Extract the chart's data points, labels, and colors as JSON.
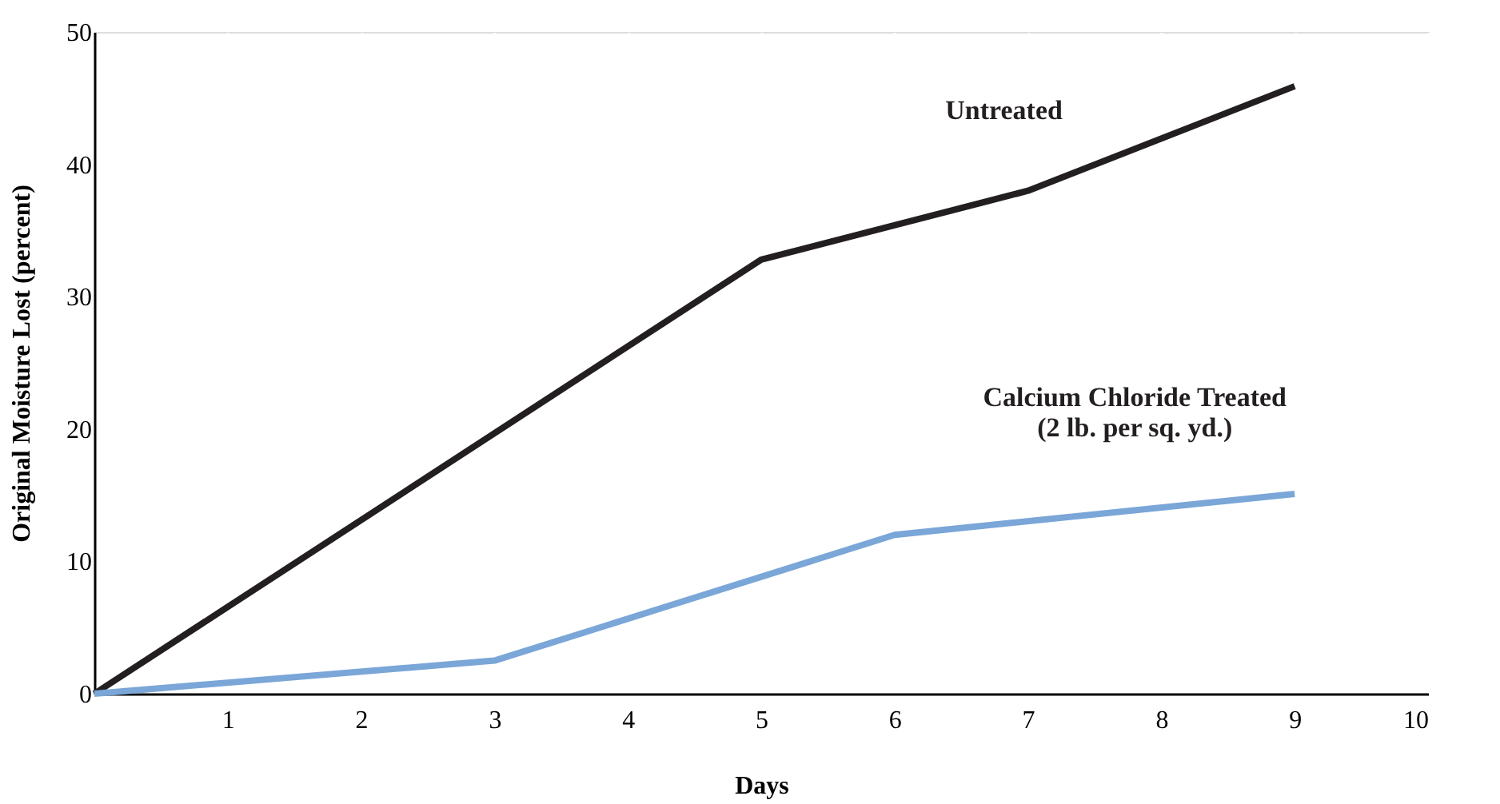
{
  "chart_data": {
    "type": "line",
    "xlabel": "Days",
    "ylabel": "Original Moisture Lost (percent)",
    "xlim": [
      0,
      10
    ],
    "xticks": [
      {
        "value": 0,
        "label": null
      },
      1,
      2,
      3,
      4,
      5,
      6,
      7,
      8,
      9,
      10
    ],
    "ylim": [
      0,
      50
    ],
    "yticks": [
      0,
      10,
      20,
      30,
      40,
      50
    ],
    "grid": "x",
    "legend": false,
    "marker": "none",
    "line_style": "solid",
    "series": [
      {
        "name": "Untreated",
        "color": "#231f20",
        "x": [
          0,
          5,
          7,
          9
        ],
        "values": [
          0,
          32.8,
          38,
          45.9
        ]
      },
      {
        "name": "Calcium Chloride Treated\n(2 lb. per sq. yd.)",
        "color": "#7aa6d8",
        "x": [
          0,
          3,
          6,
          9
        ],
        "values": [
          0,
          2.5,
          12,
          15.1
        ]
      }
    ]
  }
}
